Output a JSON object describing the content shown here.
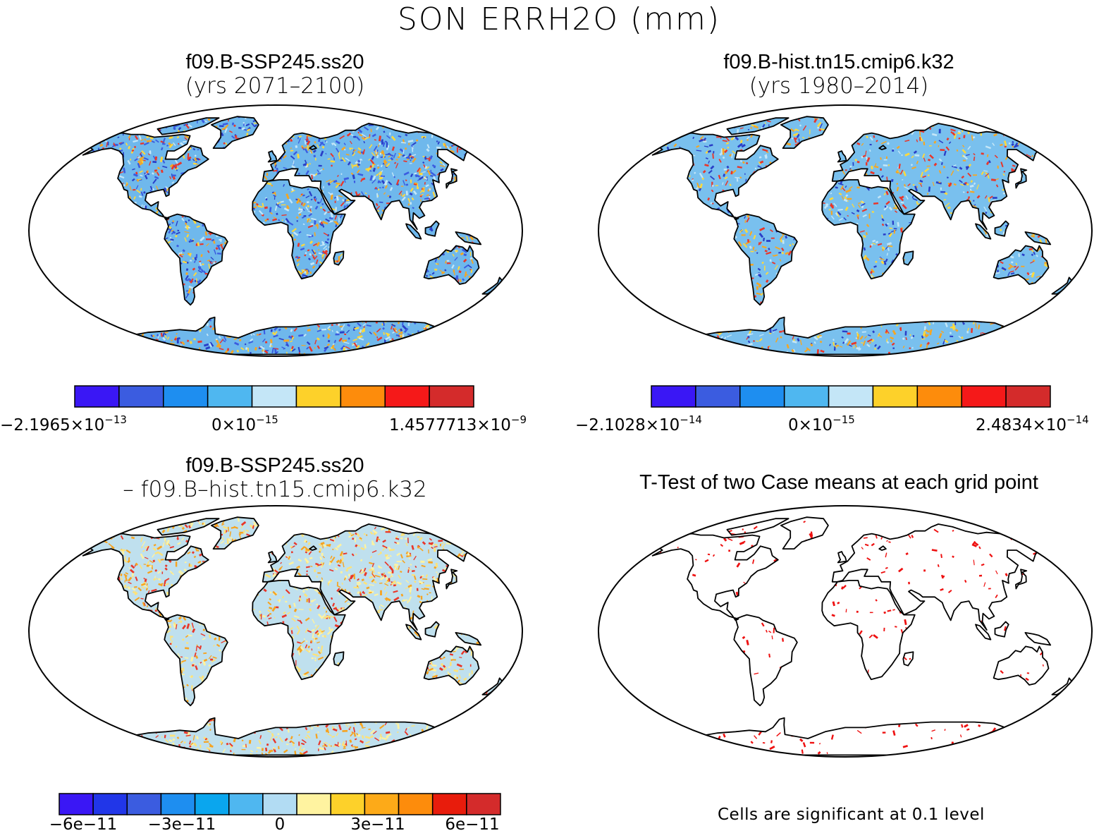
{
  "title": "SON ERRH2O (mm)",
  "panels": [
    {
      "id": "p1",
      "title_line1": "f09.B-SSP245.ss20",
      "title_line2": "(yrs 2071–2100)",
      "palette": [
        "#3a17f5",
        "#3b5ce0",
        "#1e8ef0",
        "#4fb7f0",
        "#c4e6f7",
        "#fdd12a",
        "#fd8c0c",
        "#f51919",
        "#d42b2b"
      ],
      "fill": "#6fb8ec",
      "speckle": [
        "#f5a623",
        "#e8362a",
        "#2a3fc7",
        "#ffd93b",
        "#c4e6f7",
        "#3b5ce0"
      ],
      "speckle_density": 0.55,
      "colorbar": {
        "min_label": {
          "mant": "−2.1965×10",
          "exp": "−13"
        },
        "mid_label": {
          "mant": "0×10",
          "exp": "−15"
        },
        "max_label": {
          "mant": "1.4577713×10",
          "exp": "−9"
        }
      }
    },
    {
      "id": "p2",
      "title_line1": "f09.B-hist.tn15.cmip6.k32",
      "title_line2": "(yrs 1980–2014)",
      "palette": [
        "#3a17f5",
        "#3b5ce0",
        "#1e8ef0",
        "#4fb7f0",
        "#c4e6f7",
        "#fdd12a",
        "#fd8c0c",
        "#f51919",
        "#d42b2b"
      ],
      "fill": "#79c0ee",
      "speckle": [
        "#f5a623",
        "#e8362a",
        "#2a3fc7",
        "#ffd93b",
        "#c4e6f7"
      ],
      "speckle_density": 0.35,
      "colorbar": {
        "min_label": {
          "mant": "−2.1028×10",
          "exp": "−14"
        },
        "mid_label": {
          "mant": "0×10",
          "exp": "−15"
        },
        "max_label": {
          "mant": "2.4834×10",
          "exp": "−14"
        }
      }
    },
    {
      "id": "p3",
      "title_line1": "f09.B-SSP245.ss20",
      "title_line2": "–  f09.B–hist.tn15.cmip6.k32",
      "palette": [
        "#3a17f5",
        "#2136e8",
        "#3b5ce0",
        "#1e8ef0",
        "#0aa6ee",
        "#4fb7f0",
        "#b2dcf3",
        "#fff3a0",
        "#fdd12a",
        "#fdaa18",
        "#fd8c0c",
        "#e81c0c",
        "#d42b2b"
      ],
      "fill": "#bfe0ee",
      "speckle": [
        "#fff3a0",
        "#fde27a",
        "#f7a31f",
        "#e8362a"
      ],
      "speckle_density": 0.45,
      "colorbar": {
        "ticks": [
          "−6e−11",
          "−3e−11",
          "0",
          "3e−11",
          "6e−11"
        ]
      }
    },
    {
      "id": "p4",
      "title_line1": "T-Test of two Case means at each grid point",
      "fill": "#ffffff",
      "speckle": [
        "#ee1111"
      ],
      "speckle_density": 0.06,
      "note": "Cells are significant at 0.1 level"
    }
  ]
}
